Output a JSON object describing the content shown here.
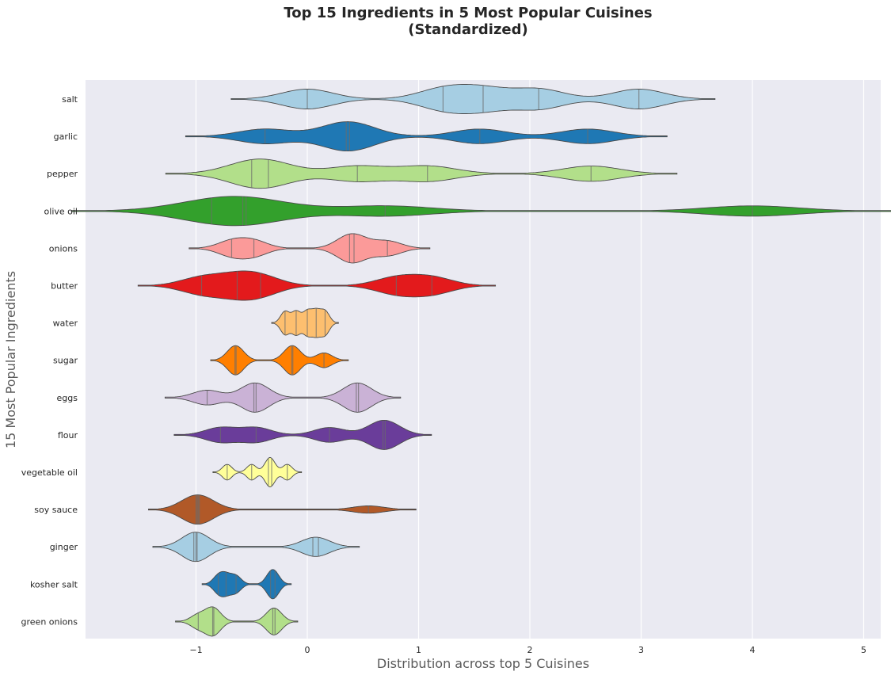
{
  "chart_data": {
    "type": "violin",
    "title_line1": "Top 15 Ingredients in 5 Most Popular Cuisines",
    "title_line2": "(Standardized)",
    "xlabel": "Distribution across top 5 Cuisines",
    "ylabel": "15 Most Popular Ingredients",
    "xlim": [
      -2.0,
      5.15
    ],
    "xticks": [
      -1,
      0,
      1,
      2,
      3,
      4,
      5
    ],
    "xtick_labels": [
      "−1",
      "0",
      "1",
      "2",
      "3",
      "4",
      "5"
    ],
    "grid": true,
    "series": [
      {
        "name": "salt",
        "color": "#a6cee3",
        "values": [
          0.0,
          1.22,
          1.58,
          2.08,
          2.98
        ]
      },
      {
        "name": "garlic",
        "color": "#1f78b4",
        "values": [
          -0.38,
          0.35,
          0.38,
          1.55,
          2.52
        ]
      },
      {
        "name": "pepper",
        "color": "#b2df8a",
        "values": [
          -0.5,
          -0.35,
          0.45,
          1.08,
          2.55
        ]
      },
      {
        "name": "olive oil",
        "color": "#33a02c",
        "values": [
          -0.86,
          -0.58,
          -0.55,
          0.7,
          4.0
        ]
      },
      {
        "name": "onions",
        "color": "#fb9a99",
        "values": [
          -0.68,
          -0.48,
          0.38,
          0.42,
          0.72
        ]
      },
      {
        "name": "butter",
        "color": "#e31a1c",
        "values": [
          -0.95,
          -0.63,
          -0.42,
          0.8,
          1.12
        ]
      },
      {
        "name": "water",
        "color": "#fdbf6f",
        "values": [
          -0.2,
          -0.1,
          0.0,
          0.08,
          0.16
        ]
      },
      {
        "name": "sugar",
        "color": "#ff7f00",
        "values": [
          -0.65,
          -0.64,
          -0.14,
          -0.13,
          0.15
        ]
      },
      {
        "name": "eggs",
        "color": "#cab2d6",
        "values": [
          -0.9,
          -0.48,
          -0.46,
          0.44,
          0.46
        ]
      },
      {
        "name": "flour",
        "color": "#6a3d9a",
        "values": [
          -0.78,
          -0.46,
          0.2,
          0.68,
          0.7
        ]
      },
      {
        "name": "vegetable oil",
        "color": "#ffff99",
        "values": [
          -0.72,
          -0.5,
          -0.35,
          -0.32,
          -0.18
        ]
      },
      {
        "name": "soy sauce",
        "color": "#b15928",
        "values": [
          -1.0,
          -0.98,
          -0.97,
          -0.99,
          0.55
        ]
      },
      {
        "name": "ginger",
        "color": "#a6cee3",
        "values": [
          -1.02,
          -1.0,
          -0.99,
          0.05,
          0.1
        ]
      },
      {
        "name": "kosher salt",
        "color": "#1f78b4",
        "values": [
          -0.8,
          -0.73,
          -0.64,
          -0.33,
          -0.29
        ]
      },
      {
        "name": "green onions",
        "color": "#b2df8a",
        "values": [
          -0.98,
          -0.85,
          -0.84,
          -0.31,
          -0.29
        ]
      }
    ]
  }
}
